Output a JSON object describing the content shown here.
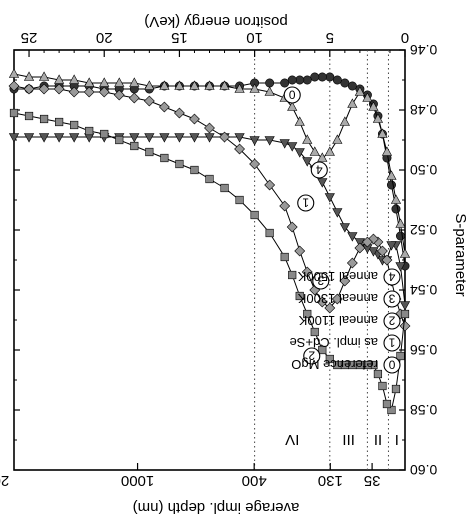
{
  "chart_data": {
    "type": "scatter",
    "orientation": "rotated 180 degrees (image appears upside down)",
    "top_axis": {
      "label": "positron energy (keV)",
      "ticks": [
        "0",
        "5",
        "10",
        "15",
        "20",
        "25"
      ],
      "range": [
        0,
        26
      ]
    },
    "bottom_axis": {
      "label": "average impl. depth (nm)",
      "ticks": [
        "35",
        "130",
        "400",
        "1000",
        "2000"
      ]
    },
    "y_axis": {
      "label": "S-parameter",
      "range": [
        0.46,
        0.6
      ],
      "ticks": [
        "0.46",
        "0.48",
        "0.50",
        "0.52",
        "0.54",
        "0.56",
        "0.58",
        "0.60"
      ]
    },
    "regions": {
      "labels": [
        "I",
        "II",
        "III",
        "IV"
      ],
      "boundaries_keV": [
        1.1,
        2.5,
        5.0,
        10.0
      ]
    },
    "legend": {
      "placement": "lower-right",
      "entries": [
        {
          "num": "4",
          "text": "anneal 1500K"
        },
        {
          "num": "3",
          "text": "anneal 1300K"
        },
        {
          "num": "2",
          "text": "anneal 1100K"
        },
        {
          "num": "1",
          "text": "as impl. Cd+Se"
        },
        {
          "num": "0",
          "text": "reference MgO"
        }
      ]
    },
    "series": [
      {
        "name": "reference MgO",
        "marker": "circle",
        "label": "0",
        "color": "#333333",
        "x": [
          0,
          0.3,
          0.6,
          0.9,
          1.2,
          1.5,
          1.8,
          2.1,
          2.5,
          3,
          3.5,
          4,
          4.5,
          5,
          5.5,
          6,
          6.5,
          7,
          7.5,
          8,
          9,
          10,
          11,
          12,
          13,
          14,
          15,
          16,
          17,
          18,
          19,
          20,
          21,
          22,
          23,
          24,
          25,
          26
        ],
        "y": [
          0.532,
          0.522,
          0.513,
          0.505,
          0.496,
          0.488,
          0.482,
          0.478,
          0.475,
          0.473,
          0.472,
          0.471,
          0.47,
          0.469,
          0.469,
          0.469,
          0.47,
          0.47,
          0.47,
          0.471,
          0.471,
          0.471,
          0.472,
          0.472,
          0.472,
          0.472,
          0.472,
          0.472,
          0.473,
          0.473,
          0.473,
          0.473,
          0.472,
          0.472,
          0.472,
          0.472,
          0.473,
          0.473
        ]
      },
      {
        "name": "anneal 1500K",
        "marker": "triangle-down",
        "label": "4",
        "color": "#aaaaaa",
        "x": [
          0,
          0.3,
          0.6,
          0.9,
          1.2,
          1.5,
          1.8,
          2.1,
          2.5,
          3,
          3.5,
          4,
          4.5,
          5,
          5.5,
          6,
          6.5,
          7,
          7.5,
          8,
          9,
          10,
          11,
          12,
          13,
          14,
          15,
          16,
          17,
          18,
          19,
          20,
          21,
          22,
          23,
          24,
          25,
          26
        ],
        "y": [
          0.528,
          0.518,
          0.51,
          0.502,
          0.494,
          0.488,
          0.483,
          0.479,
          0.476,
          0.474,
          0.478,
          0.484,
          0.49,
          0.494,
          0.496,
          0.494,
          0.49,
          0.484,
          0.479,
          0.476,
          0.474,
          0.473,
          0.473,
          0.472,
          0.472,
          0.472,
          0.472,
          0.472,
          0.472,
          0.471,
          0.471,
          0.471,
          0.471,
          0.47,
          0.47,
          0.469,
          0.469,
          0.468
        ]
      },
      {
        "name": "as impl. Cd+Se",
        "marker": "triangle-up",
        "label": "1",
        "color": "#555555",
        "x": [
          0,
          0.3,
          0.6,
          0.9,
          1.2,
          1.5,
          1.8,
          2.1,
          2.5,
          3,
          3.5,
          4,
          4.5,
          5,
          5.5,
          6,
          6.5,
          7,
          7.5,
          8,
          9,
          10,
          11,
          12,
          13,
          14,
          15,
          16,
          17,
          18,
          19,
          20,
          21,
          22,
          23,
          24,
          25,
          26
        ],
        "y": [
          0.545,
          0.532,
          0.525,
          0.525,
          0.53,
          0.53,
          0.528,
          0.527,
          0.526,
          0.524,
          0.522,
          0.519,
          0.514,
          0.509,
          0.504,
          0.5,
          0.497,
          0.494,
          0.492,
          0.491,
          0.49,
          0.49,
          0.489,
          0.489,
          0.489,
          0.489,
          0.489,
          0.489,
          0.489,
          0.489,
          0.489,
          0.489,
          0.489,
          0.489,
          0.489,
          0.489,
          0.489,
          0.489
        ]
      },
      {
        "name": "anneal 1300K",
        "marker": "diamond",
        "label": "3",
        "color": "#999999",
        "x": [
          0,
          0.3,
          0.6,
          0.9,
          1.2,
          1.5,
          1.8,
          2.1,
          2.5,
          3,
          3.5,
          4,
          4.5,
          5,
          5.5,
          6,
          6.5,
          7,
          7.5,
          8,
          9,
          10,
          11,
          12,
          13,
          14,
          15,
          16,
          17,
          18,
          19,
          20,
          21,
          22,
          23,
          24,
          25,
          26
        ],
        "y": [
          0.552,
          0.548,
          0.543,
          0.537,
          0.53,
          0.527,
          0.524,
          0.523,
          0.524,
          0.526,
          0.531,
          0.537,
          0.543,
          0.546,
          0.544,
          0.54,
          0.534,
          0.527,
          0.519,
          0.512,
          0.505,
          0.498,
          0.493,
          0.489,
          0.486,
          0.483,
          0.481,
          0.479,
          0.477,
          0.476,
          0.475,
          0.474,
          0.474,
          0.474,
          0.473,
          0.473,
          0.473,
          0.472
        ]
      },
      {
        "name": "anneal 1100K",
        "marker": "square",
        "label": "2",
        "color": "#888888",
        "x": [
          0,
          0.3,
          0.6,
          0.9,
          1.2,
          1.5,
          1.8,
          2.1,
          2.5,
          3,
          3.5,
          4,
          4.5,
          5,
          5.5,
          6,
          6.5,
          7,
          7.5,
          8,
          9,
          10,
          11,
          12,
          13,
          14,
          15,
          16,
          17,
          18,
          19,
          20,
          21,
          22,
          23,
          24,
          25,
          26
        ],
        "y": [
          0.548,
          0.562,
          0.573,
          0.58,
          0.578,
          0.572,
          0.568,
          0.565,
          0.565,
          0.565,
          0.565,
          0.565,
          0.565,
          0.563,
          0.56,
          0.554,
          0.548,
          0.542,
          0.535,
          0.529,
          0.521,
          0.515,
          0.51,
          0.506,
          0.503,
          0.5,
          0.498,
          0.496,
          0.494,
          0.492,
          0.49,
          0.488,
          0.487,
          0.485,
          0.484,
          0.483,
          0.482,
          0.481
        ]
      }
    ]
  }
}
